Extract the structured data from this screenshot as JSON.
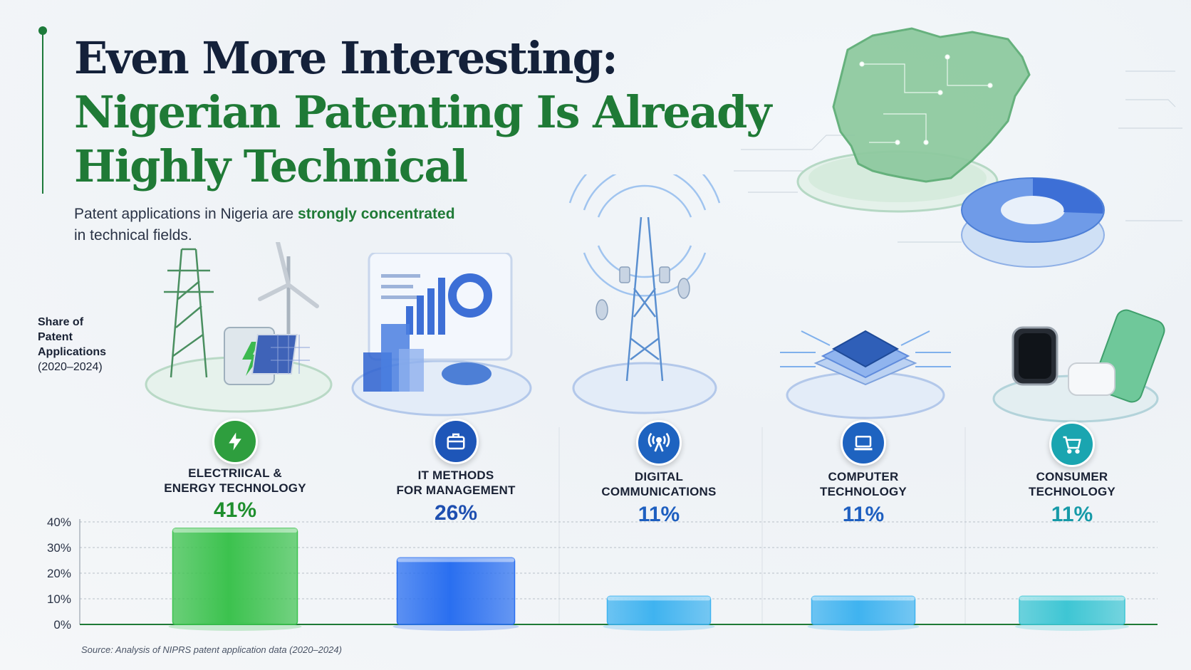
{
  "header": {
    "title_line1": "Even More Interesting:",
    "title_line2": "Nigerian Patenting Is Already",
    "title_line3": "Highly Technical",
    "subtitle_pre": "Patent applications in Nigeria are ",
    "subtitle_highlight": "strongly concentrated",
    "subtitle_post": "in technical fields."
  },
  "axis_label": {
    "line1": "Share of",
    "line2": "Patent",
    "line3": "Applications",
    "line4": "(2020–2024)"
  },
  "source": "Source: Analysis of NIPRS patent application data (2020–2024)",
  "categories": [
    {
      "label1": "ELECTRIICAL &",
      "label2": "ENERGY TECHNOLOGY",
      "value_text": "41%",
      "color": "#2e9e3e",
      "icon": "lightning-icon"
    },
    {
      "label1": "IT METHODS",
      "label2": "FOR MANAGEMENT",
      "value_text": "26%",
      "color": "#1e56b8",
      "icon": "briefcase-icon"
    },
    {
      "label1": "DIGITAL",
      "label2": "COMMUNICATIONS",
      "value_text": "11%",
      "color": "#1e63c0",
      "icon": "antenna-icon"
    },
    {
      "label1": "COMPUTER",
      "label2": "TECHNOLOGY",
      "value_text": "11%",
      "color": "#1e63c0",
      "icon": "laptop-icon"
    },
    {
      "label1": "CONSUMER",
      "label2": "TECHNOLOGY",
      "value_text": "11%",
      "color": "#1aa5b0",
      "icon": "cart-icon"
    }
  ],
  "chart_data": {
    "type": "bar",
    "categories": [
      "ELECTRIICAL & ENERGY TECHNOLOGY",
      "IT METHODS FOR MANAGEMENT",
      "DIGITAL COMMUNICATIONS",
      "COMPUTER TECHNOLOGY",
      "CONSUMER TECHNOLOGY"
    ],
    "values": [
      41,
      26,
      11,
      11,
      11
    ],
    "ylabel": "Share of Patent Applications (2020–2024)",
    "ylim": [
      0,
      40
    ],
    "yticks": [
      "0%",
      "10%",
      "20%",
      "30%",
      "40%"
    ],
    "grid": true,
    "bar_colors": [
      "#3cc24e",
      "#2a6ff0",
      "#3fb3f0",
      "#3fb3f0",
      "#3ec6d4"
    ]
  }
}
